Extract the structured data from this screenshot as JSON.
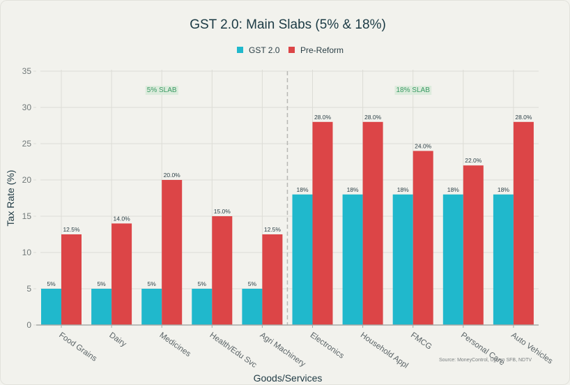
{
  "colors": {
    "gst": "#20b8cc",
    "pre": "#dc4547",
    "grid": "#dcdcd6",
    "axis": "#a7a9a6",
    "slab_bg": "#dcebdc",
    "divider": "#b8b8b4"
  },
  "chart_data": {
    "type": "bar",
    "title": "GST 2.0: Main Slabs (5% & 18%)",
    "xlabel": "Goods/Services",
    "ylabel": "Tax Rate (%)",
    "ylim": [
      0,
      35
    ],
    "yticks": [
      "0",
      "5",
      "10",
      "15",
      "20",
      "25",
      "30",
      "35"
    ],
    "grid": true,
    "legend_position": "top-center",
    "categories": [
      "Food Grains",
      "Dairy",
      "Medicines",
      "Health/Edu Svc",
      "Agri Machinery",
      "Electronics",
      "Household Appl",
      "FMCG",
      "Personal Care",
      "Auto Vehicles"
    ],
    "series": [
      {
        "name": "GST 2.0",
        "values": [
          5,
          5,
          5,
          5,
          5,
          18,
          18,
          18,
          18,
          18
        ],
        "labels": [
          "5%",
          "5%",
          "5%",
          "5%",
          "5%",
          "18%",
          "18%",
          "18%",
          "18%",
          "18%"
        ]
      },
      {
        "name": "Pre-Reform",
        "values": [
          12.5,
          14.0,
          20.0,
          15.0,
          12.5,
          28.0,
          28.0,
          24.0,
          22.0,
          28.0
        ],
        "labels": [
          "12.5%",
          "14.0%",
          "20.0%",
          "15.0%",
          "12.5%",
          "28.0%",
          "28.0%",
          "24.0%",
          "22.0%",
          "28.0%"
        ]
      }
    ],
    "annotations": {
      "divider_between": [
        "Agri Machinery",
        "Electronics"
      ],
      "slab_labels": [
        {
          "text": "5% SLAB",
          "region": "left"
        },
        {
          "text": "18% SLAB",
          "region": "right"
        }
      ],
      "slab_label_value": 32.5,
      "source": "Source: MoneyControl, Ujjivan SFB, NDTV"
    }
  }
}
